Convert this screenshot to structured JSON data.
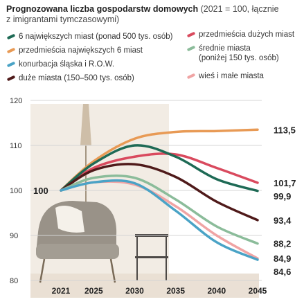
{
  "header": {
    "title": "Prognozowana liczba gospodarstw domowych",
    "subtitle_line1": "(2021 = 100, łącznie",
    "subtitle_line2": "z imigrantami tymczasowymi)"
  },
  "colors": {
    "big6": "#1e6a55",
    "suburbs_big6": "#e89a55",
    "conurbation": "#4aa3c6",
    "large_cities": "#4f1a1a",
    "suburbs_large": "#d94a5e",
    "medium": "#8bbc9a",
    "rural": "#f0a4a4",
    "grid": "#d4d4d4",
    "axis_text": "#333333"
  },
  "legend": [
    {
      "key": "big6",
      "line1": "6 największych miast (ponad 500 tys. osób)"
    },
    {
      "key": "suburbs_big6",
      "line1": "przedmieścia największych 6 miast"
    },
    {
      "key": "conurbation",
      "line1": "konurbacja śląska i R.O.W."
    },
    {
      "key": "large_cities",
      "line1": "duże miasta (150–500 tys. osób)"
    },
    {
      "key": "suburbs_large",
      "line1": "przedmieścia dużych miast"
    },
    {
      "key": "medium",
      "line1": "średnie miasta",
      "line2": "(poniżej 150 tys. osób)"
    },
    {
      "key": "rural",
      "line1": "wieś i małe miasta"
    }
  ],
  "chart_data": {
    "type": "line",
    "x": [
      2021,
      2025,
      2030,
      2035,
      2040,
      2045
    ],
    "ylim": [
      80,
      120
    ],
    "yticks": [
      80,
      90,
      100,
      110,
      120
    ],
    "xticks": [
      2021,
      2025,
      2030,
      2035,
      2040,
      2045
    ],
    "grid": true,
    "start_label": "100",
    "series": [
      {
        "key": "suburbs_big6",
        "name": "przedmieścia największych 6 miast",
        "values": [
          100,
          106.5,
          111.5,
          113,
          113.2,
          113.5
        ],
        "end_label": "113,5"
      },
      {
        "key": "suburbs_large",
        "name": "przedmieścia dużych miast",
        "values": [
          100,
          105,
          107.5,
          108,
          105,
          101.7
        ],
        "end_label": "101,7"
      },
      {
        "key": "big6",
        "name": "6 największych miast (ponad 500 tys. osób)",
        "values": [
          100,
          106,
          110,
          107.5,
          102.5,
          99.9
        ],
        "end_label": "99,9"
      },
      {
        "key": "large_cities",
        "name": "duże miasta (150–500 tys. osób)",
        "values": [
          100,
          104.5,
          105.8,
          103,
          97.5,
          93.4
        ],
        "end_label": "93,4"
      },
      {
        "key": "medium",
        "name": "średnie miasta (poniżej 150 tys. osób)",
        "values": [
          100,
          102.8,
          102.8,
          98,
          92,
          88.2
        ],
        "end_label": "88,2"
      },
      {
        "key": "rural",
        "name": "wieś i małe miasta",
        "values": [
          100,
          101.8,
          101.3,
          96.5,
          90,
          84.9
        ],
        "end_label": "84,9"
      },
      {
        "key": "conurbation",
        "name": "konurbacja śląska i R.O.W.",
        "values": [
          100,
          101.8,
          101.6,
          95.5,
          88.5,
          84.6
        ],
        "end_label": "84,6"
      }
    ]
  }
}
